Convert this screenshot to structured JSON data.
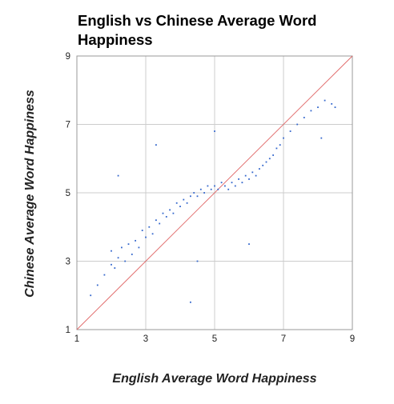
{
  "chart_data": {
    "type": "scatter",
    "title": "English vs Chinese Average Word Happiness",
    "xlabel": "English Average Word Happiness",
    "ylabel": "Chinese Average Word Happiness",
    "xlim": [
      1,
      9
    ],
    "ylim": [
      1,
      9
    ],
    "x_ticks": [
      "1",
      "3",
      "5",
      "7",
      "9"
    ],
    "y_ticks": [
      "9",
      "7",
      "5",
      "3",
      "1"
    ],
    "grid": true,
    "legend": "none",
    "reference_line": {
      "from": [
        1,
        1
      ],
      "to": [
        9,
        9
      ],
      "style": "diagonal y = x"
    },
    "colors": {
      "points": "#3366cc",
      "reference_line": "#e06666",
      "grid": "#cccccc",
      "frame": "#999999"
    },
    "series": [
      {
        "points_x": [
          1.4,
          1.6,
          1.8,
          2.0,
          2.0,
          2.1,
          2.2,
          2.3,
          2.4,
          2.5,
          2.6,
          2.7,
          2.8,
          2.9,
          3.0,
          3.1,
          3.2,
          3.3,
          3.4,
          3.5,
          3.6,
          3.7,
          3.8,
          3.9,
          4.0,
          4.1,
          4.2,
          4.3,
          4.4,
          4.5,
          4.6,
          4.7,
          4.8,
          4.9,
          5.0,
          5.1,
          5.2,
          5.3,
          5.4,
          5.5,
          5.6,
          5.7,
          5.8,
          5.9,
          6.0,
          6.1,
          6.2,
          6.3,
          6.4,
          6.5,
          6.6,
          6.7,
          6.8,
          6.9,
          7.0,
          7.2,
          7.4,
          7.6,
          7.8,
          8.0,
          8.2,
          8.4,
          8.5,
          3.3,
          4.5,
          4.3,
          5.0,
          2.2,
          8.1,
          6.0
        ],
        "points_y": [
          2.0,
          2.3,
          2.6,
          2.9,
          3.3,
          2.8,
          3.1,
          3.4,
          3.0,
          3.5,
          3.2,
          3.6,
          3.4,
          3.9,
          3.7,
          4.0,
          3.8,
          4.2,
          4.1,
          4.4,
          4.3,
          4.5,
          4.4,
          4.7,
          4.6,
          4.8,
          4.7,
          4.9,
          5.0,
          4.9,
          5.1,
          5.0,
          5.2,
          5.1,
          5.2,
          5.1,
          5.3,
          5.2,
          5.1,
          5.3,
          5.2,
          5.4,
          5.3,
          5.5,
          5.4,
          5.6,
          5.5,
          5.7,
          5.8,
          5.9,
          6.0,
          6.1,
          6.3,
          6.4,
          6.6,
          6.8,
          7.0,
          7.2,
          7.4,
          7.5,
          7.7,
          7.6,
          7.5,
          6.4,
          3.0,
          1.8,
          6.8,
          5.5,
          6.6,
          3.5
        ]
      }
    ]
  }
}
